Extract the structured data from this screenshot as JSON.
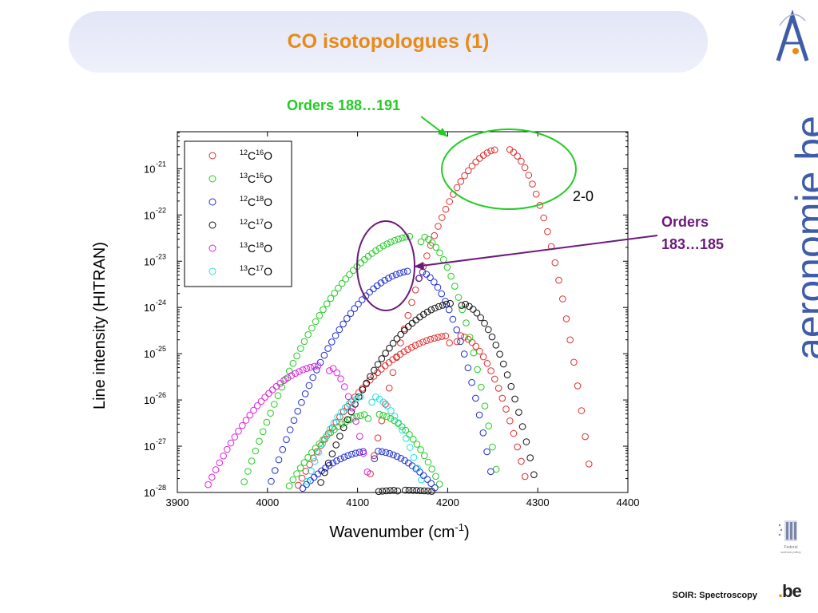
{
  "slide": {
    "title": "CO isotopologues (1)",
    "footer": "SOIR: Spectroscopy",
    "brand_text": "aeronomie.be",
    "brand_main": "aeronomie",
    "brand_suffix": "be",
    "be_logo_main": "be",
    "logo_caption_1": "Federal",
    "logo_caption_2": "science policy"
  },
  "annotations": {
    "top_label": "Orders 188…191",
    "side_label_1": "Orders",
    "side_label_2": "183…185",
    "band_label": "2-0",
    "colors": {
      "green": "#22cc22",
      "purple": "#6b1a7a"
    }
  },
  "chart_data": {
    "type": "scatter",
    "xlabel": "Wavenumber  (cm",
    "xlabel_sup": "-1",
    "xlabel_end": ")",
    "ylabel": "Line intensity (HITRAN)",
    "xlim": [
      3900,
      4400
    ],
    "ylim_log10": [
      -28,
      -20.2
    ],
    "y_scale": "log",
    "x_ticks": [
      3900,
      4000,
      4100,
      4200,
      4300,
      4400
    ],
    "y_tick_exponents": [
      -28,
      -27,
      -26,
      -25,
      -24,
      -23,
      -22,
      -21
    ],
    "y_tick_base": "10",
    "grid": false,
    "legend_position": "top-left",
    "marker": "open-circle",
    "series": [
      {
        "name": "12C16O",
        "mass1": "12",
        "el1": "C",
        "mass2": "16",
        "el2": "O",
        "color": "#e03030",
        "bands": [
          {
            "center": 4262,
            "span": [
              4110,
              4361
            ],
            "peak": -20.55,
            "gap": [
              4252,
              4268
            ],
            "gap_min": -21.0
          },
          {
            "center": 4210,
            "span": [
              4030,
              4290
            ],
            "peak": -24.6,
            "gap": [
              4200,
              4212
            ],
            "gap_min": -25.1
          }
        ]
      },
      {
        "name": "13C16O",
        "mass1": "13",
        "el1": "C",
        "mass2": "16",
        "el2": "O",
        "color": "#22cc22",
        "bands": [
          {
            "center": 4168,
            "span": [
              3970,
              4258
            ],
            "peak": -22.45,
            "gap": [
              4159,
              4172
            ],
            "gap_min": -22.95
          },
          {
            "center": 4118,
            "span": [
              4020,
              4195
            ],
            "peak": -26.3,
            "gap": [
              4110,
              4124
            ],
            "gap_min": -26.7
          }
        ]
      },
      {
        "name": "12C18O",
        "mass1": "12",
        "el1": "C",
        "mass2": "18",
        "el2": "O",
        "color": "#2030d0",
        "bands": [
          {
            "center": 4165,
            "span": [
              4000,
              4252
            ],
            "peak": -23.2,
            "gap": [
              4157,
              4170
            ],
            "gap_min": -23.75
          },
          {
            "center": 4117,
            "span": [
              4035,
              4190
            ],
            "peak": -27.1,
            "gap": [
              4108,
              4121
            ],
            "gap_min": -27.6
          }
        ]
      },
      {
        "name": "12C17O",
        "mass1": "12",
        "el1": "C",
        "mass2": "17",
        "el2": "O",
        "color": "#111111",
        "bands": [
          {
            "center": 4212,
            "span": [
              4055,
              4300
            ],
            "peak": -23.9,
            "gap": [
              4204,
              4216
            ],
            "gap_min": -24.5
          },
          {
            "center": 4150,
            "span": [
              4115,
              4195
            ],
            "peak": -27.95,
            "gap": [
              4143,
              4152
            ],
            "gap_min": -28.0
          }
        ]
      },
      {
        "name": "13C18O",
        "mass1": "13",
        "el1": "C",
        "mass2": "18",
        "el2": "O",
        "color": "#dd22dd",
        "bands": [
          {
            "center": 4065,
            "span": [
              3930,
              4115
            ],
            "peak": -25.25,
            "gap": [
              4058,
              4070
            ],
            "gap_min": -25.75
          }
        ]
      },
      {
        "name": "13C17O",
        "mass1": "13",
        "el1": "C",
        "mass2": "17",
        "el2": "O",
        "color": "#22e0e0",
        "bands": [
          {
            "center": 4112,
            "span": [
              4040,
              4175
            ],
            "peak": -25.9,
            "gap": [
              4105,
              4118
            ],
            "gap_min": -26.35
          }
        ]
      }
    ]
  }
}
